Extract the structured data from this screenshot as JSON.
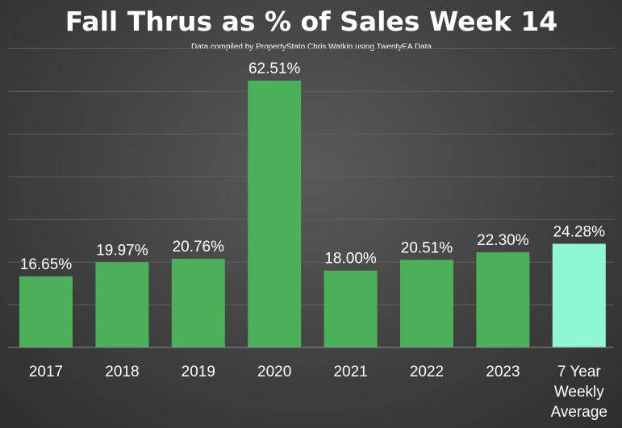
{
  "chart_data": {
    "type": "bar",
    "title": "Fall Thrus as % of Sales Week 14",
    "subtitle": "Data compiled by PropertyStato Chris Watkin using TwentyEA Data",
    "categories": [
      "2017",
      "2018",
      "2019",
      "2020",
      "2021",
      "2022",
      "2023",
      "7 Year Weekly Average"
    ],
    "values": [
      16.65,
      19.97,
      20.76,
      62.51,
      18.0,
      20.51,
      22.3,
      24.28
    ],
    "value_labels": [
      "16.65%",
      "19.97%",
      "20.76%",
      "62.51%",
      "18.00%",
      "20.51%",
      "22.30%",
      "24.28%"
    ],
    "ylim": [
      0,
      70
    ],
    "grid": true,
    "bar_color": "#4caf5a",
    "highlight_color": "#8ff7d4",
    "highlight_index": 7
  }
}
